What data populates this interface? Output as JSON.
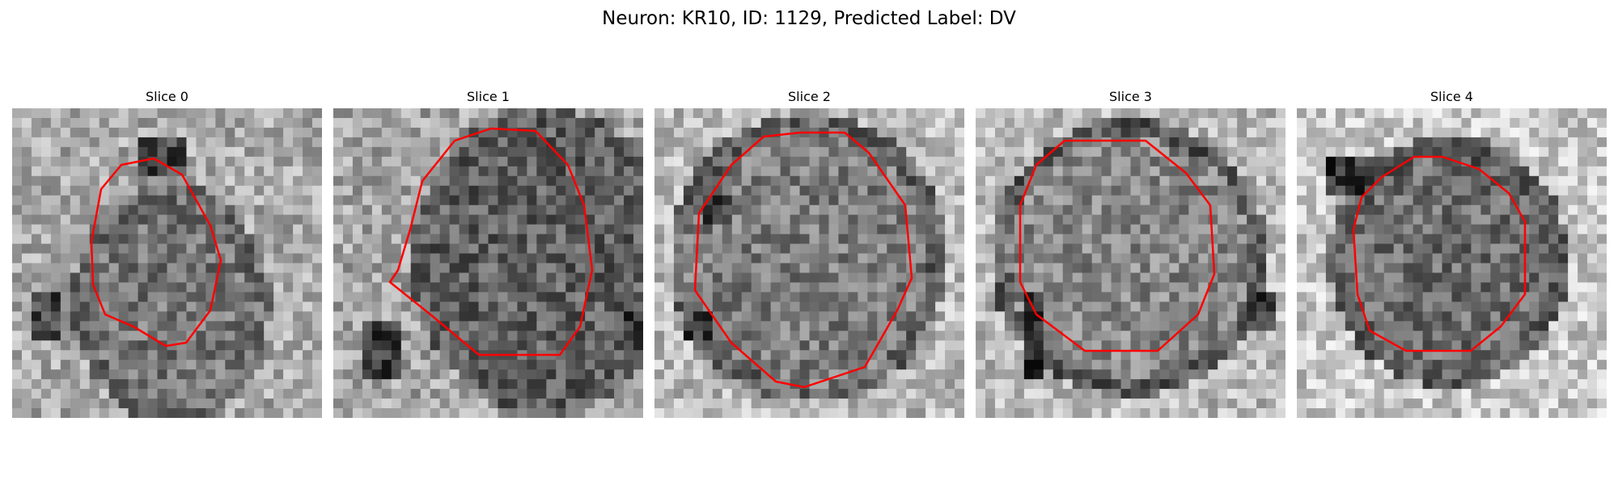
{
  "figure": {
    "title": "Neuron: KR10, ID: 1129, Predicted Label: DV"
  },
  "slices": [
    {
      "title": "Slice 0",
      "contour": "#ff0000"
    },
    {
      "title": "Slice 1",
      "contour": "#ff0000"
    },
    {
      "title": "Slice 2",
      "contour": "#ff0000"
    },
    {
      "title": "Slice 3",
      "contour": "#ff0000"
    },
    {
      "title": "Slice 4",
      "contour": "#ff0000"
    }
  ]
}
